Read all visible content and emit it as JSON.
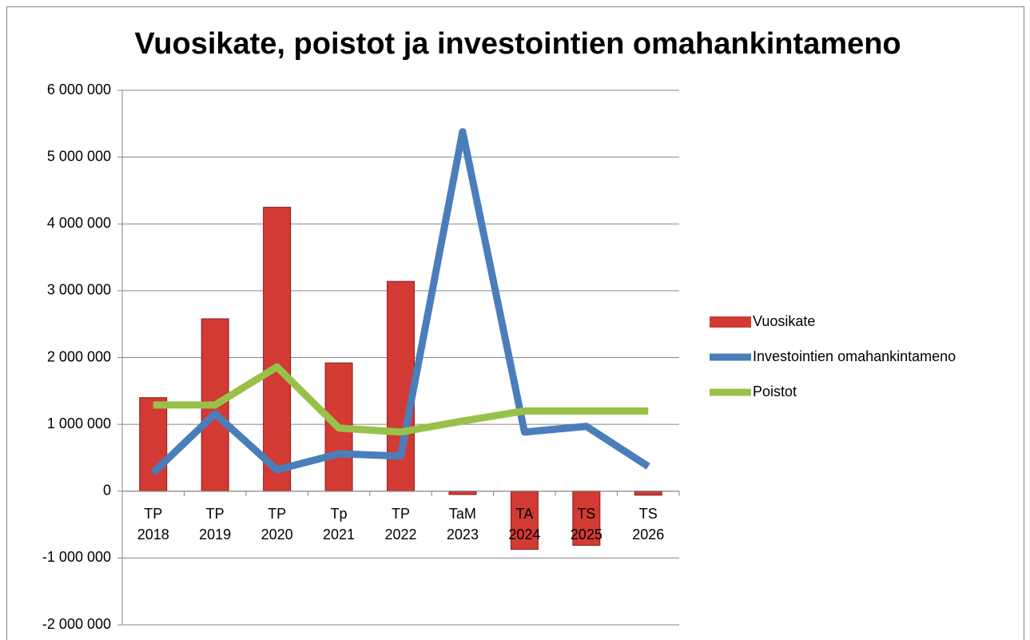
{
  "chart_data": {
    "type": "bar-line",
    "title": "Vuosikate, poistot ja investointien omahankintameno",
    "categories": [
      "TP 2018",
      "TP 2019",
      "TP 2020",
      "Tp 2021",
      "TP 2022",
      "TaM 2023",
      "TA 2024",
      "TS 2025",
      "TS 2026"
    ],
    "series": [
      {
        "name": "Vuosikate",
        "type": "bar",
        "color": "#d23a34",
        "values": [
          1400000,
          2580000,
          4250000,
          1920000,
          3140000,
          -50000,
          -870000,
          -810000,
          -60000
        ]
      },
      {
        "name": "Investointien omahankintameno",
        "type": "line",
        "color": "#4a7ebb",
        "values": [
          275000,
          1160000,
          320000,
          560000,
          525000,
          5380000,
          885000,
          970000,
          370000
        ]
      },
      {
        "name": "Poistot",
        "type": "line",
        "color": "#98c14a",
        "values": [
          1290000,
          1290000,
          1860000,
          945000,
          885000,
          1050000,
          1200000,
          1200000,
          1200000
        ]
      }
    ],
    "ylim": [
      -2000000,
      6000000
    ],
    "yticks": [
      {
        "value": -2000000,
        "label": "-2 000 000"
      },
      {
        "value": -1000000,
        "label": "-1 000 000"
      },
      0,
      {
        "value": 1000000,
        "label": "1 000 000"
      },
      {
        "value": 2000000,
        "label": "2 000 000"
      },
      {
        "value": 3000000,
        "label": "3 000 000"
      },
      {
        "value": 4000000,
        "label": "4 000 000"
      },
      {
        "value": 5000000,
        "label": "5 000 000"
      },
      {
        "value": 6000000,
        "label": "6 000 000"
      }
    ],
    "grid": true,
    "legend": "right"
  }
}
